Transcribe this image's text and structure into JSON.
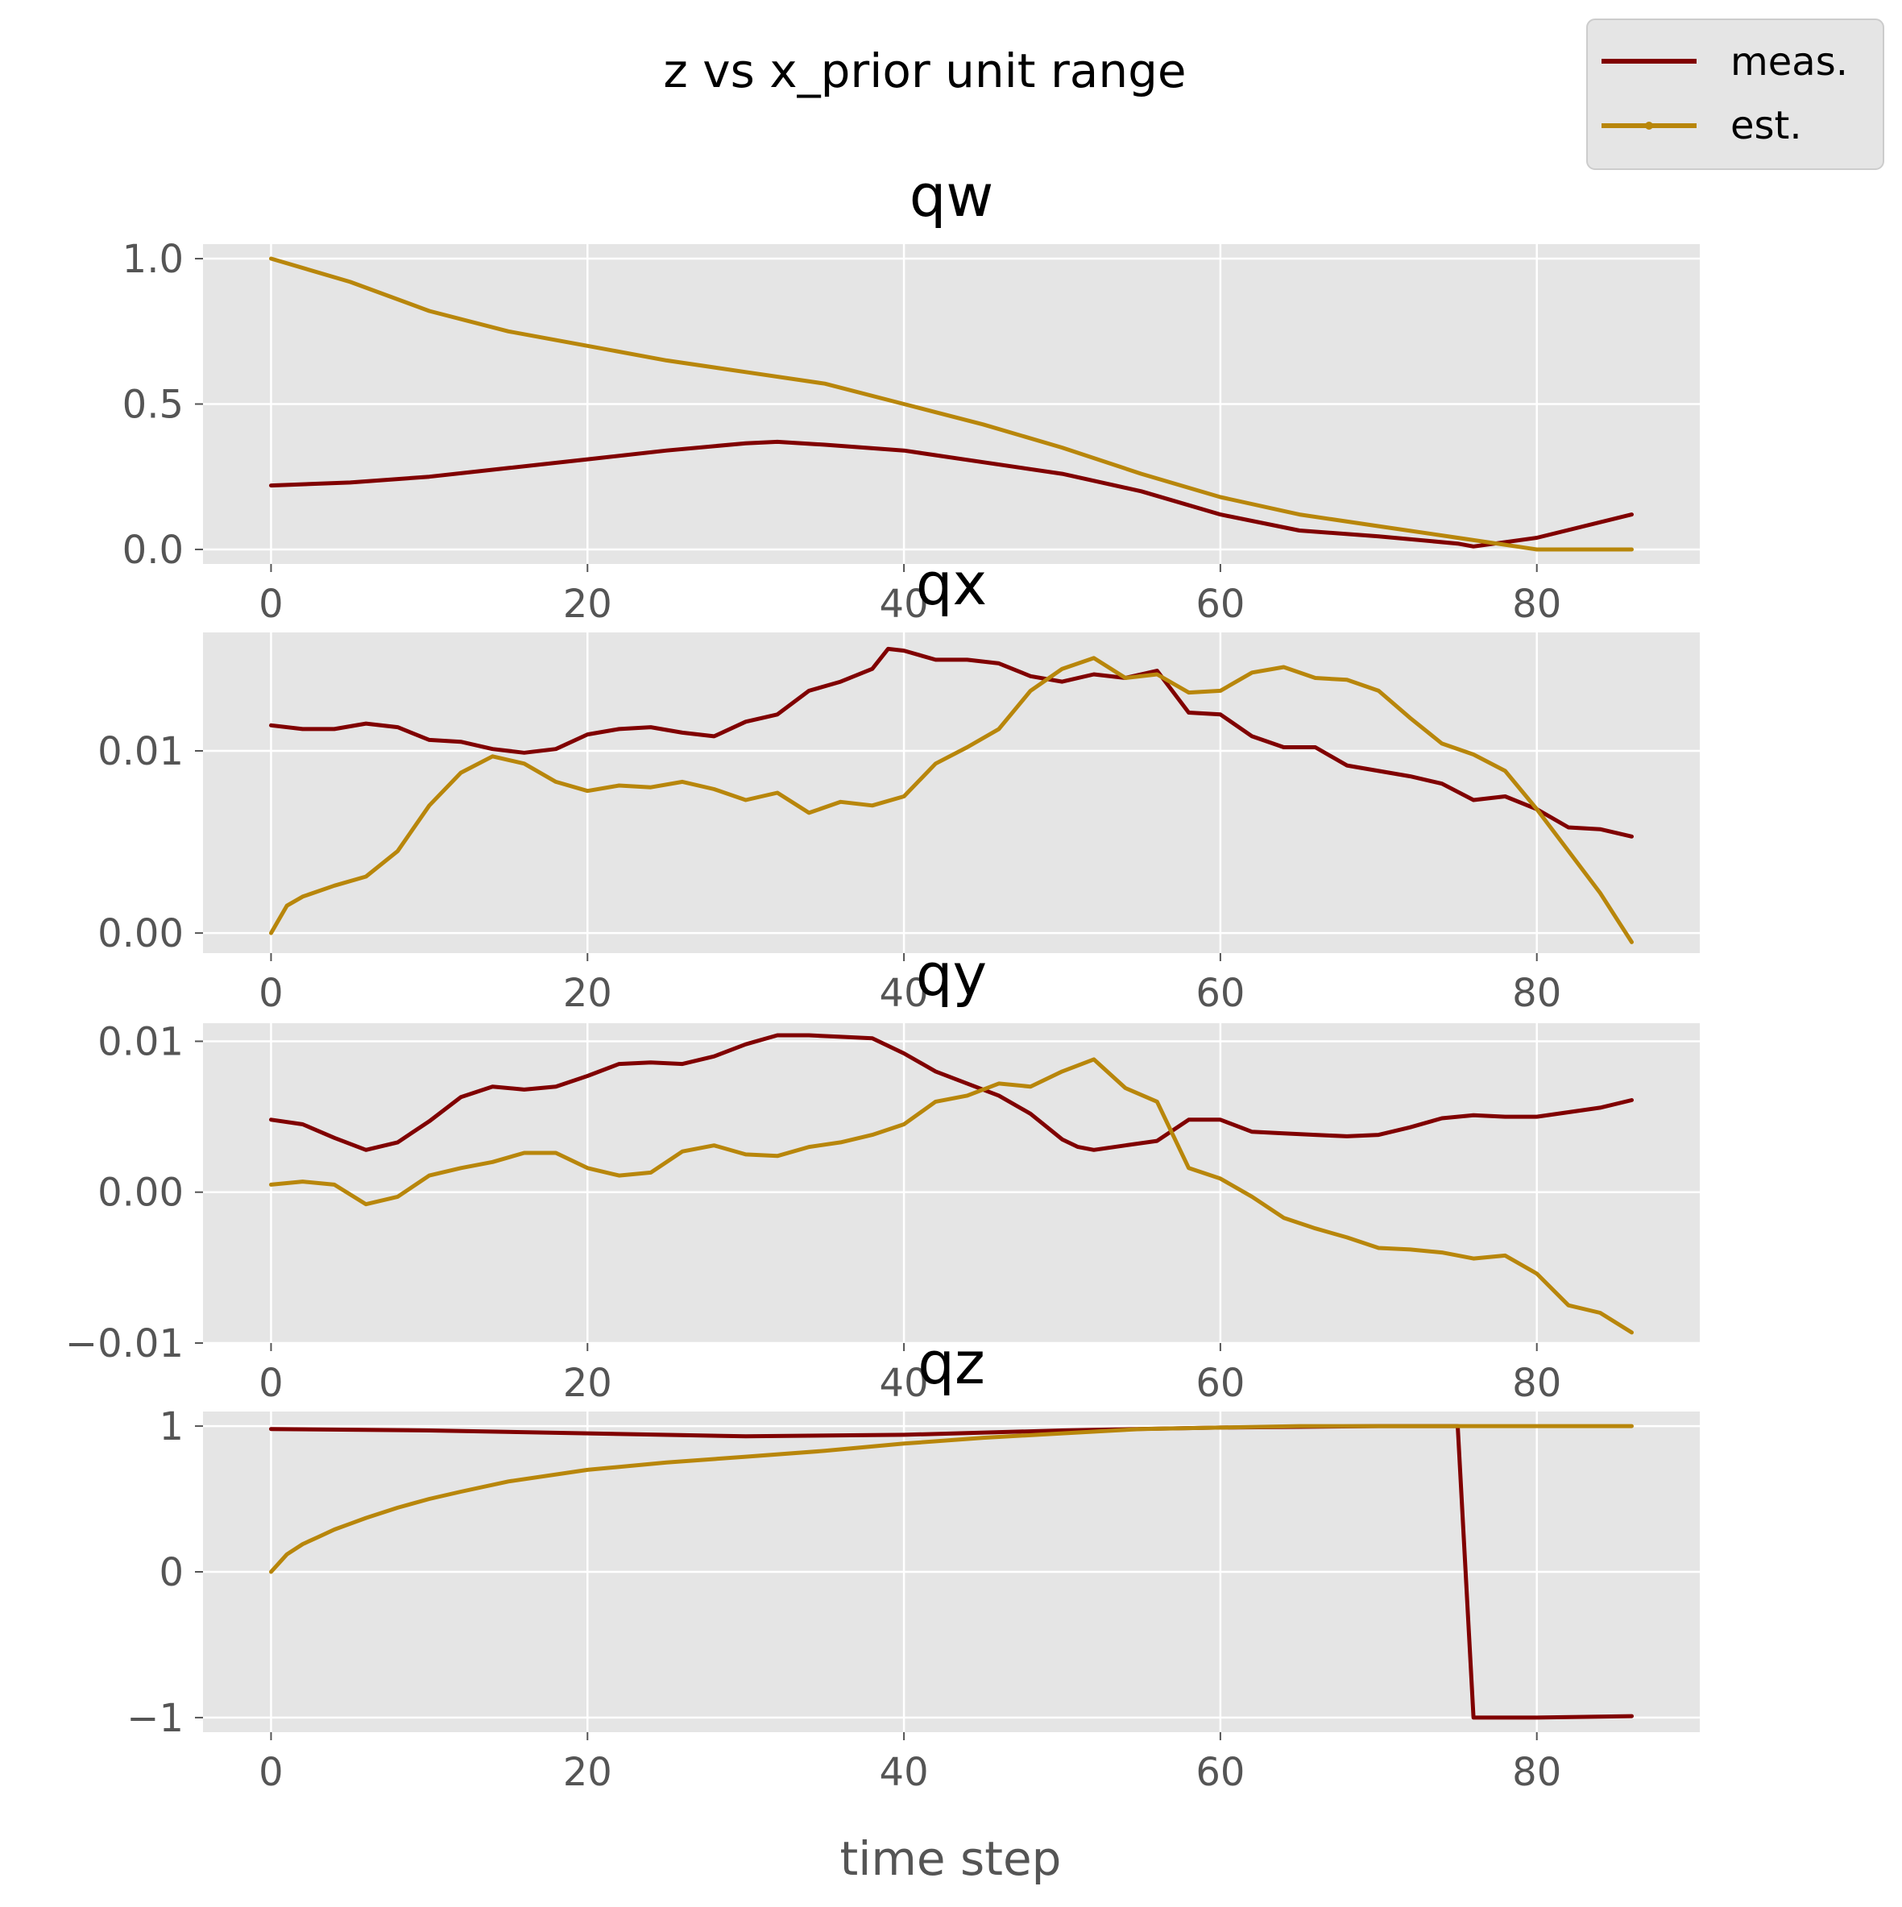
{
  "figure": {
    "suptitle": "z vs x_prior unit range",
    "xlabel": "time step"
  },
  "legend": {
    "placement": "top-right",
    "entries": [
      {
        "label": "meas.",
        "color": "#800000"
      },
      {
        "label": "est.",
        "color": "#B8860B"
      }
    ]
  },
  "style": {
    "axes_background": "#E5E5E5",
    "grid_color": "#FFFFFF",
    "meas_color": "#800000",
    "est_color": "#B8860B"
  },
  "chart_data": [
    {
      "type": "line",
      "title": "qw",
      "xlim": [
        -4.3,
        90.3
      ],
      "ylim": [
        -0.05,
        1.05
      ],
      "xticks": [
        0,
        20,
        40,
        60,
        80
      ],
      "xtick_labels": [
        "0",
        "20",
        "40",
        "60",
        "80"
      ],
      "yticks": [
        0,
        0.5,
        1
      ],
      "ytick_labels": [
        "0.0",
        "0.5",
        "1.0"
      ],
      "grid": true,
      "series": [
        {
          "name": "meas.",
          "x": [
            0,
            5,
            10,
            15,
            20,
            25,
            30,
            32,
            35,
            40,
            45,
            50,
            55,
            60,
            65,
            70,
            75,
            76,
            80,
            86
          ],
          "y": [
            0.22,
            0.23,
            0.25,
            0.28,
            0.31,
            0.34,
            0.365,
            0.37,
            0.36,
            0.34,
            0.3,
            0.26,
            0.2,
            0.12,
            0.065,
            0.045,
            0.02,
            0.01,
            0.04,
            0.12
          ]
        },
        {
          "name": "est.",
          "x": [
            0,
            5,
            10,
            15,
            20,
            25,
            30,
            35,
            40,
            45,
            50,
            55,
            60,
            65,
            70,
            75,
            80,
            86
          ],
          "y": [
            1.0,
            0.92,
            0.82,
            0.75,
            0.7,
            0.65,
            0.61,
            0.57,
            0.5,
            0.43,
            0.35,
            0.26,
            0.18,
            0.12,
            0.08,
            0.04,
            0.0,
            0.0
          ]
        }
      ]
    },
    {
      "type": "line",
      "title": "qx",
      "xlim": [
        -4.3,
        90.3
      ],
      "ylim": [
        -0.0011,
        0.0165
      ],
      "xticks": [
        0,
        20,
        40,
        60,
        80
      ],
      "xtick_labels": [
        "0",
        "20",
        "40",
        "60",
        "80"
      ],
      "yticks": [
        0,
        0.01
      ],
      "ytick_labels": [
        "0.00",
        "0.01"
      ],
      "grid": true,
      "series": [
        {
          "name": "meas.",
          "x": [
            0,
            2,
            4,
            6,
            8,
            10,
            12,
            14,
            16,
            18,
            20,
            22,
            24,
            26,
            28,
            30,
            32,
            34,
            36,
            38,
            39,
            40,
            42,
            44,
            46,
            48,
            50,
            52,
            54,
            56,
            58,
            60,
            62,
            64,
            66,
            68,
            70,
            72,
            74,
            76,
            78,
            80,
            82,
            84,
            86
          ],
          "y": [
            0.0114,
            0.0112,
            0.0112,
            0.0115,
            0.0113,
            0.0106,
            0.0105,
            0.0101,
            0.0099,
            0.0101,
            0.0109,
            0.0112,
            0.0113,
            0.011,
            0.0108,
            0.0116,
            0.012,
            0.0133,
            0.0138,
            0.0145,
            0.0156,
            0.0155,
            0.015,
            0.015,
            0.0148,
            0.0141,
            0.0138,
            0.0142,
            0.014,
            0.0144,
            0.0121,
            0.012,
            0.0108,
            0.0102,
            0.0102,
            0.0092,
            0.0089,
            0.0086,
            0.0082,
            0.0073,
            0.0075,
            0.0068,
            0.0058,
            0.0057,
            0.0053
          ]
        },
        {
          "name": "est.",
          "x": [
            0,
            1,
            2,
            4,
            6,
            8,
            10,
            12,
            14,
            16,
            18,
            20,
            22,
            24,
            26,
            28,
            30,
            32,
            34,
            36,
            38,
            40,
            42,
            44,
            46,
            48,
            50,
            52,
            54,
            56,
            58,
            60,
            62,
            64,
            66,
            68,
            70,
            72,
            74,
            76,
            78,
            80,
            82,
            84,
            86
          ],
          "y": [
            0.0,
            0.0015,
            0.002,
            0.0026,
            0.0031,
            0.0045,
            0.007,
            0.0088,
            0.0097,
            0.0093,
            0.0083,
            0.0078,
            0.0081,
            0.008,
            0.0083,
            0.0079,
            0.0073,
            0.0077,
            0.0066,
            0.0072,
            0.007,
            0.0075,
            0.0093,
            0.0102,
            0.0112,
            0.0133,
            0.0145,
            0.0151,
            0.014,
            0.0142,
            0.0132,
            0.0133,
            0.0143,
            0.0146,
            0.014,
            0.0139,
            0.0133,
            0.0118,
            0.0104,
            0.0098,
            0.0089,
            0.0068,
            0.0045,
            0.0022,
            -0.0005
          ]
        }
      ]
    },
    {
      "type": "line",
      "title": "qy",
      "xlim": [
        -4.3,
        90.3
      ],
      "ylim": [
        -0.01,
        0.0112
      ],
      "xticks": [
        0,
        20,
        40,
        60,
        80
      ],
      "xtick_labels": [
        "0",
        "20",
        "40",
        "60",
        "80"
      ],
      "yticks": [
        -0.01,
        0,
        0.01
      ],
      "ytick_labels": [
        "−0.01",
        "0.00",
        "0.01"
      ],
      "grid": true,
      "series": [
        {
          "name": "meas.",
          "x": [
            0,
            2,
            4,
            6,
            8,
            10,
            12,
            14,
            16,
            18,
            20,
            22,
            24,
            26,
            28,
            30,
            32,
            34,
            36,
            38,
            40,
            42,
            44,
            46,
            48,
            50,
            51,
            52,
            54,
            56,
            58,
            60,
            62,
            64,
            66,
            68,
            70,
            72,
            74,
            76,
            78,
            80,
            82,
            84,
            86
          ],
          "y": [
            0.0048,
            0.0045,
            0.0036,
            0.0028,
            0.0033,
            0.0047,
            0.0063,
            0.007,
            0.0068,
            0.007,
            0.0077,
            0.0085,
            0.0086,
            0.0085,
            0.009,
            0.0098,
            0.0104,
            0.0104,
            0.0103,
            0.0102,
            0.0092,
            0.008,
            0.0072,
            0.0064,
            0.0052,
            0.0035,
            0.003,
            0.0028,
            0.0031,
            0.0034,
            0.0048,
            0.0048,
            0.004,
            0.0039,
            0.0038,
            0.0037,
            0.0038,
            0.0043,
            0.0049,
            0.0051,
            0.005,
            0.005,
            0.0053,
            0.0056,
            0.0061
          ]
        },
        {
          "name": "est.",
          "x": [
            0,
            2,
            4,
            6,
            8,
            10,
            12,
            14,
            16,
            18,
            20,
            22,
            24,
            26,
            28,
            30,
            32,
            34,
            36,
            38,
            40,
            42,
            44,
            46,
            48,
            50,
            52,
            54,
            56,
            58,
            60,
            62,
            64,
            66,
            68,
            70,
            72,
            74,
            76,
            78,
            80,
            82,
            84,
            86
          ],
          "y": [
            0.0005,
            0.0007,
            0.0005,
            -0.0008,
            -0.0003,
            0.0011,
            0.0016,
            0.002,
            0.0026,
            0.0026,
            0.0016,
            0.0011,
            0.0013,
            0.0027,
            0.0031,
            0.0025,
            0.0024,
            0.003,
            0.0033,
            0.0038,
            0.0045,
            0.006,
            0.0064,
            0.0072,
            0.007,
            0.008,
            0.0088,
            0.0069,
            0.006,
            0.0016,
            0.0009,
            -0.0003,
            -0.0017,
            -0.0024,
            -0.003,
            -0.0037,
            -0.0038,
            -0.004,
            -0.0044,
            -0.0042,
            -0.0054,
            -0.0075,
            -0.008,
            -0.0093
          ]
        }
      ]
    },
    {
      "type": "line",
      "title": "qz",
      "xlim": [
        -4.3,
        90.3
      ],
      "ylim": [
        -1.1,
        1.1
      ],
      "xticks": [
        0,
        20,
        40,
        60,
        80
      ],
      "xtick_labels": [
        "0",
        "20",
        "40",
        "60",
        "80"
      ],
      "yticks": [
        -1,
        0,
        1
      ],
      "ytick_labels": [
        "−1",
        "0",
        "1"
      ],
      "grid": true,
      "series": [
        {
          "name": "meas.",
          "x": [
            0,
            10,
            20,
            30,
            40,
            50,
            60,
            70,
            75,
            76,
            80,
            86
          ],
          "y": [
            0.98,
            0.97,
            0.95,
            0.93,
            0.94,
            0.97,
            0.99,
            1.0,
            1.0,
            -1.0,
            -1.0,
            -0.99
          ]
        },
        {
          "name": "est.",
          "x": [
            0,
            1,
            2,
            3,
            4,
            5,
            6,
            8,
            10,
            12,
            15,
            20,
            25,
            30,
            35,
            40,
            45,
            50,
            55,
            60,
            65,
            70,
            75,
            80,
            86
          ],
          "y": [
            0.0,
            0.12,
            0.19,
            0.24,
            0.29,
            0.33,
            0.37,
            0.44,
            0.5,
            0.55,
            0.62,
            0.7,
            0.75,
            0.79,
            0.83,
            0.88,
            0.92,
            0.95,
            0.98,
            0.99,
            1.0,
            1.0,
            1.0,
            1.0,
            1.0
          ]
        }
      ]
    }
  ]
}
